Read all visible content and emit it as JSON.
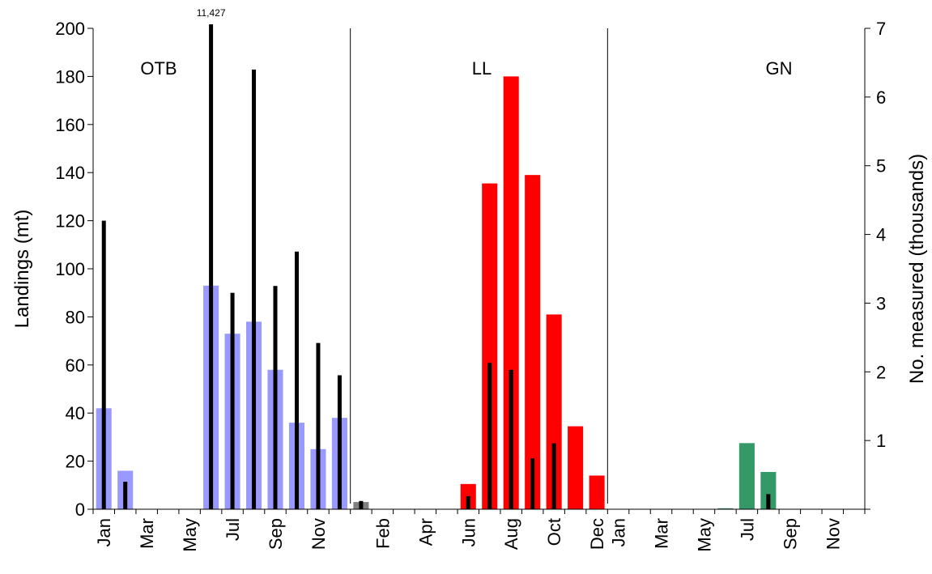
{
  "chart_data": {
    "type": "bar",
    "ylabel": "Landings (mt)",
    "y2label": "No. measured (thousands)",
    "ylim": [
      0,
      200
    ],
    "y2lim": [
      0,
      7
    ],
    "yticks": [
      0,
      20,
      40,
      60,
      80,
      100,
      120,
      140,
      160,
      180,
      200
    ],
    "y2ticks": [
      1,
      2,
      3,
      4,
      5,
      6,
      7
    ],
    "annotation": {
      "text": "11,427",
      "panel": "OTB",
      "month": "Jun"
    },
    "colors": {
      "OTB": "#9999ff",
      "LL": "#ff0000",
      "GN": "#339966",
      "LL_Jan": "#808080",
      "measured": "#000000"
    },
    "panels": [
      {
        "name": "OTB",
        "months": [
          "Jan",
          "Feb",
          "Mar",
          "Apr",
          "May",
          "Jun",
          "Jul",
          "Aug",
          "Sep",
          "Oct",
          "Nov",
          "Dec"
        ],
        "landings": [
          42,
          16,
          0,
          0,
          0,
          93,
          73,
          78,
          58,
          36,
          25,
          38
        ],
        "measured": [
          4.2,
          0.4,
          0,
          0,
          0,
          11.427,
          3.15,
          6.4,
          3.25,
          3.75,
          2.42,
          1.95
        ]
      },
      {
        "name": "LL",
        "months": [
          "Jan",
          "Feb",
          "Mar",
          "Apr",
          "May",
          "Jun",
          "Jul",
          "Aug",
          "Sep",
          "Oct",
          "Nov",
          "Dec"
        ],
        "landings": [
          3,
          0,
          0,
          0,
          0,
          10.5,
          135.5,
          180,
          139,
          81,
          34.5,
          14
        ],
        "measured": [
          0.12,
          0,
          0,
          0,
          0,
          0.19,
          2.13,
          2.03,
          0.74,
          0.96,
          0,
          0
        ]
      },
      {
        "name": "GN",
        "months": [
          "Jan",
          "Feb",
          "Mar",
          "Apr",
          "May",
          "Jun",
          "Jul",
          "Aug",
          "Sep",
          "Oct",
          "Nov",
          "Dec"
        ],
        "landings": [
          0,
          0,
          0,
          0,
          0,
          0.4,
          27.5,
          15.5,
          0,
          0,
          0,
          0
        ],
        "measured": [
          0,
          0,
          0,
          0,
          0,
          0,
          0,
          0.22,
          0,
          0,
          0,
          0
        ]
      }
    ],
    "xtick_labels": [
      [
        "Jan",
        "Mar",
        "May",
        "Jul",
        "Sep",
        "Nov"
      ],
      [
        "Feb",
        "Apr",
        "Jun",
        "Aug",
        "Oct",
        "Dec"
      ],
      [
        "Jan",
        "Mar",
        "May",
        "Jul",
        "Sep",
        "Nov"
      ]
    ]
  }
}
